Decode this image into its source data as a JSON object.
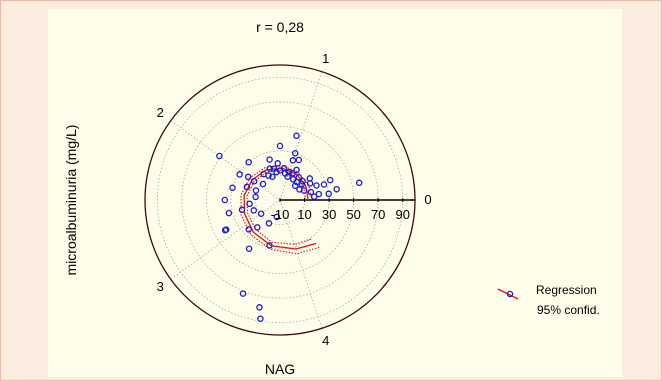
{
  "chart_data": {
    "type": "scatter",
    "projection": "polar",
    "title": "r = 0,28",
    "xlabel": "NAG",
    "ylabel": "microalbuminuria (mg/L)",
    "angular_ticks": [
      "0",
      "1",
      "2",
      "3",
      "4"
    ],
    "radial_ticks": [
      "-10",
      "10",
      "30",
      "50",
      "70",
      "90"
    ],
    "legend": {
      "position": "right",
      "entries": [
        "Regression",
        "95% confid."
      ]
    },
    "grid": true,
    "colors": {
      "points": "#1a1ad0",
      "regression": "#dd1111",
      "confidence": "#dd1111",
      "outer_circle": "#3a0a10",
      "grid": "#aaaaaa"
    },
    "series": [
      {
        "name": "Regression",
        "role": "points",
        "points": [
          [
            0.17,
            56
          ],
          [
            0.27,
            28
          ],
          [
            0.3,
            22
          ],
          [
            0.4,
            18
          ],
          [
            0.12,
            22
          ],
          [
            0.3,
            34
          ],
          [
            0.5,
            12
          ],
          [
            0.5,
            20
          ],
          [
            0.4,
            8
          ],
          [
            0.55,
            14
          ],
          [
            0.65,
            10
          ],
          [
            0.8,
            10
          ],
          [
            0.7,
            14
          ],
          [
            0.9,
            14
          ],
          [
            0.85,
            18
          ],
          [
            1.0,
            14
          ],
          [
            1.0,
            10
          ],
          [
            1.1,
            12
          ],
          [
            1.25,
            14
          ],
          [
            1.35,
            13
          ],
          [
            1.4,
            16
          ],
          [
            1.5,
            10
          ],
          [
            1.6,
            12
          ],
          [
            1.7,
            15
          ],
          [
            1.9,
            9
          ],
          [
            2.2,
            11
          ],
          [
            2.4,
            10
          ],
          [
            2.6,
            15
          ],
          [
            2.8,
            13
          ],
          [
            3.0,
            9
          ],
          [
            2.2,
            19
          ],
          [
            0.1,
            30
          ],
          [
            0.15,
            37
          ],
          [
            1.0,
            24
          ],
          [
            1.25,
            34
          ],
          [
            1.05,
            44
          ],
          [
            1.0,
            30
          ],
          [
            0.9,
            26
          ],
          [
            0.6,
            7
          ],
          [
            1.5,
            17
          ],
          [
            2.0,
            16
          ],
          [
            2.3,
            30
          ],
          [
            2.5,
            35
          ],
          [
            2.7,
            33
          ],
          [
            2.7,
            22
          ],
          [
            2.9,
            40
          ],
          [
            3.1,
            25
          ],
          [
            3.2,
            19
          ],
          [
            3.4,
            11
          ],
          [
            3.6,
            4
          ],
          [
            2.05,
            29
          ],
          [
            0.08,
            18
          ],
          [
            0.3,
            11
          ],
          [
            0.2,
            16
          ],
          [
            1.15,
            16
          ],
          [
            1.8,
            30
          ],
          [
            3.57,
            28
          ],
          [
            2.0,
            22
          ],
          [
            2.9,
            41
          ],
          [
            3.3,
            37
          ],
          [
            3.45,
            72
          ],
          [
            3.6,
            79
          ],
          [
            3.62,
            88
          ],
          [
            2.0,
            51
          ],
          [
            1.3,
            20
          ],
          [
            1.45,
            24
          ]
        ]
      },
      {
        "name": "Regression",
        "role": "curve",
        "points": [
          [
            0,
            13
          ],
          [
            0.4,
            14
          ],
          [
            0.8,
            15
          ],
          [
            1.2,
            16
          ],
          [
            1.6,
            17
          ],
          [
            2.0,
            18
          ],
          [
            2.4,
            19.5
          ],
          [
            2.8,
            21
          ],
          [
            3.2,
            24
          ],
          [
            3.6,
            28
          ],
          [
            4.0,
            32
          ],
          [
            4.3,
            36
          ]
        ]
      },
      {
        "name": "95% confid.",
        "role": "band-upper",
        "points": [
          [
            0,
            16
          ],
          [
            0.4,
            16.5
          ],
          [
            0.8,
            17
          ],
          [
            1.2,
            18
          ],
          [
            1.6,
            19
          ],
          [
            2.0,
            20.5
          ],
          [
            2.4,
            22
          ],
          [
            2.8,
            24
          ],
          [
            3.2,
            27
          ],
          [
            3.6,
            31
          ],
          [
            4.0,
            36
          ],
          [
            4.3,
            40
          ]
        ]
      },
      {
        "name": "95% confid.",
        "role": "band-lower",
        "points": [
          [
            0,
            11
          ],
          [
            0.4,
            12
          ],
          [
            0.8,
            13
          ],
          [
            1.2,
            14
          ],
          [
            1.6,
            15
          ],
          [
            2.0,
            16
          ],
          [
            2.4,
            17
          ],
          [
            2.8,
            18.5
          ],
          [
            3.2,
            21
          ],
          [
            3.6,
            25
          ],
          [
            4.0,
            28
          ],
          [
            4.3,
            31
          ]
        ]
      }
    ]
  }
}
